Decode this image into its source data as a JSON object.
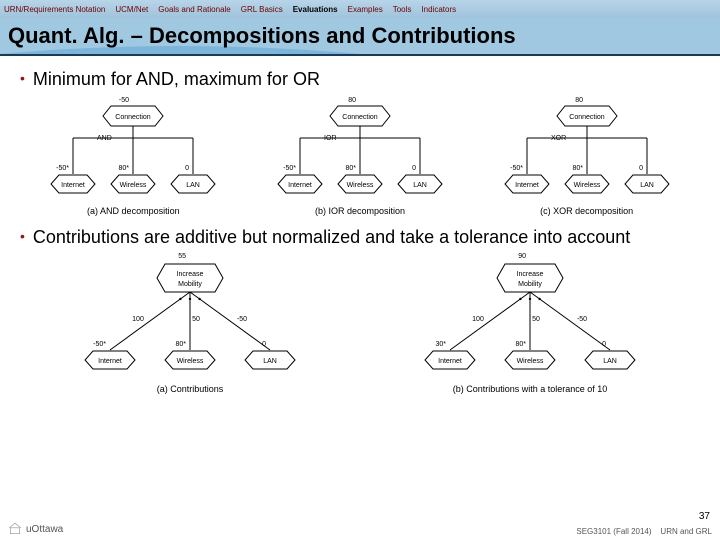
{
  "nav": {
    "items": [
      "URN/Requirements Notation",
      "UCM/Net",
      "Goals and Rationale",
      "GRL Basics",
      "Evaluations",
      "Examples",
      "Tools",
      "Indicators"
    ],
    "active_index": 4,
    "bg_gradient": [
      "#b8d4e8",
      "#a0c4dc"
    ],
    "link_color": "#6a0000"
  },
  "title": "Quant. Alg. – Decompositions and Contributions",
  "titlebar": {
    "bg": "#a0c8e0",
    "underline": "#1a3a5a",
    "fontsize": 22
  },
  "bullets": [
    "Minimum for AND, maximum for OR",
    "Contributions are additive but normalized and take a tolerance into account"
  ],
  "bullet_style": {
    "dot_color": "#8a1a1a",
    "fontsize": 18
  },
  "row1": {
    "node_fill": "#ffffff",
    "node_stroke": "#000000",
    "stroke_width": 1,
    "hex_w": 44,
    "hex_h": 18,
    "top_w": 60,
    "top_h": 20,
    "diagrams": [
      {
        "top": {
          "label": "Connection",
          "value": "-50"
        },
        "decomp": "AND",
        "children": [
          {
            "label": "Internet",
            "value": "-50",
            "star": true
          },
          {
            "label": "Wireless",
            "value": "80",
            "star": true
          },
          {
            "label": "LAN",
            "value": "0",
            "star": false
          }
        ],
        "caption": "(a) AND decomposition"
      },
      {
        "top": {
          "label": "Connection",
          "value": "80"
        },
        "decomp": "IOR",
        "children": [
          {
            "label": "Internet",
            "value": "-50",
            "star": true
          },
          {
            "label": "Wireless",
            "value": "80",
            "star": true
          },
          {
            "label": "LAN",
            "value": "0",
            "star": false
          }
        ],
        "caption": "(b) IOR decomposition"
      },
      {
        "top": {
          "label": "Connection",
          "value": "80"
        },
        "decomp": "XOR",
        "children": [
          {
            "label": "Internet",
            "value": "-50",
            "star": true
          },
          {
            "label": "Wireless",
            "value": "80",
            "star": true
          },
          {
            "label": "LAN",
            "value": "0",
            "star": false
          }
        ],
        "caption": "(c) XOR decomposition"
      }
    ]
  },
  "row2": {
    "node_fill": "#ffffff",
    "node_stroke": "#000000",
    "stroke_width": 1,
    "diagrams": [
      {
        "top": {
          "label": "Increase\nMobility",
          "value": "55"
        },
        "edge_labels": [
          "100",
          "50",
          "-50"
        ],
        "children": [
          {
            "label": "Internet",
            "value": "-50",
            "star": true
          },
          {
            "label": "Wireless",
            "value": "80",
            "star": true
          },
          {
            "label": "LAN",
            "value": "0",
            "star": false
          }
        ],
        "caption": "(a) Contributions"
      },
      {
        "top": {
          "label": "Increase\nMobility",
          "value": "90"
        },
        "edge_labels": [
          "100",
          "50",
          "-50"
        ],
        "children": [
          {
            "label": "Internet",
            "value": "30",
            "star": true
          },
          {
            "label": "Wireless",
            "value": "80",
            "star": true
          },
          {
            "label": "LAN",
            "value": "0",
            "star": false
          }
        ],
        "caption": "(b) Contributions with a tolerance of 10"
      }
    ]
  },
  "footer": {
    "logo_text": "uOttawa",
    "left": "SEG3101 (Fall 2014)",
    "right": "URN and GRL",
    "page": "37"
  }
}
